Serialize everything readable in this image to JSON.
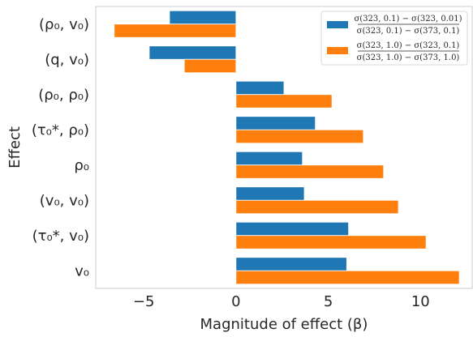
{
  "chart_data": {
    "type": "bar",
    "orientation": "horizontal",
    "title": "",
    "xlabel": "Magnitude of effect (β)",
    "ylabel": "Effect",
    "xlim": [
      -7.6,
      12.8
    ],
    "xticks": [
      -5,
      0,
      5,
      10
    ],
    "grid": false,
    "legend_position": "top-right",
    "categories": [
      "(ρ₀, v₀)",
      "(q, v₀)",
      "(ρ₀, ρ₀)",
      "(τ₀*, ρ₀)",
      "ρ₀",
      "(v₀, v₀)",
      "(τ₀*, v₀)",
      "v₀"
    ],
    "series": [
      {
        "name": "σ(323, 0.1) − σ(323, 0.01) / σ(323, 0.1) − σ(373, 0.1)",
        "name_numerator": "σ(323, 0.1) − σ(323, 0.01)",
        "name_denominator": "σ(323, 0.1) − σ(373, 0.1)",
        "color": "#1f77b4",
        "values": [
          -3.6,
          -4.7,
          2.6,
          4.3,
          3.6,
          3.7,
          6.1,
          6.0
        ]
      },
      {
        "name": "σ(323, 1.0) − σ(323, 0.1) / σ(323, 1.0) − σ(373, 1.0)",
        "name_numerator": "σ(323, 1.0) − σ(323, 0.1)",
        "name_denominator": "σ(323, 1.0) − σ(373, 1.0)",
        "color": "#ff7f0e",
        "values": [
          -6.6,
          -2.8,
          5.2,
          6.9,
          8.0,
          8.8,
          10.3,
          12.1
        ]
      }
    ]
  }
}
